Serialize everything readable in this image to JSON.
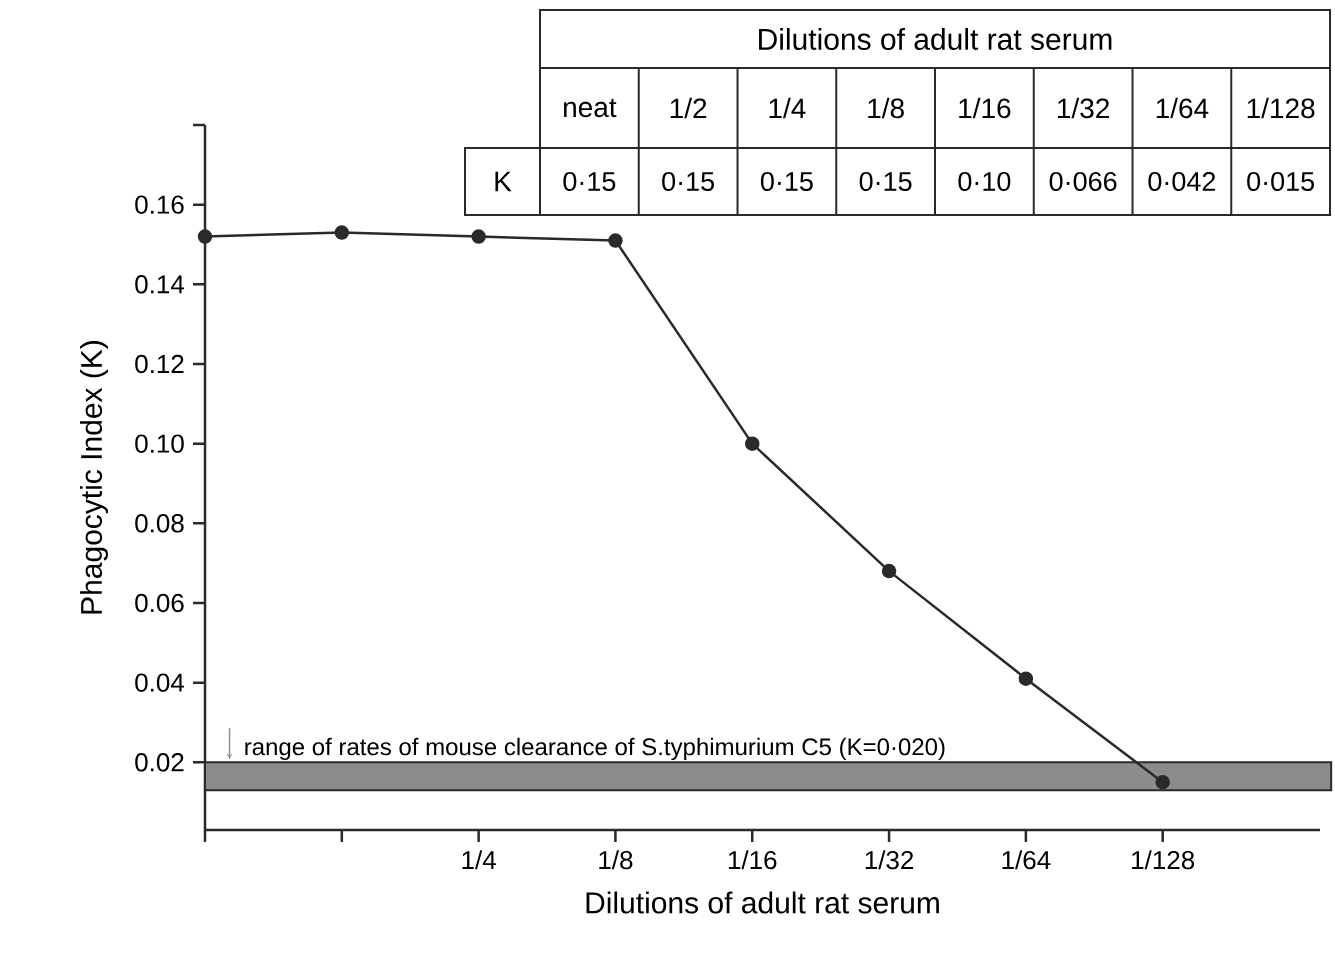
{
  "chart_data": {
    "type": "line",
    "xlabel": "Dilutions of adult rat serum",
    "ylabel": "Phagocytic Index (K)",
    "categories": [
      null,
      null,
      "1/4",
      "1/8",
      "1/16",
      "1/32",
      "1/64",
      "1/128"
    ],
    "values": [
      0.152,
      0.153,
      0.152,
      0.151,
      0.1,
      0.068,
      0.041,
      0.015
    ],
    "color": "#2a2a2a",
    "marker": "circle",
    "line_style": "solid",
    "ylim": [
      0.003,
      0.18
    ],
    "yticks": [
      {
        "value": 0.02,
        "label": "0.02"
      },
      {
        "value": 0.04,
        "label": "0.04"
      },
      {
        "value": 0.06,
        "label": "0.06"
      },
      {
        "value": 0.08,
        "label": "0.08"
      },
      {
        "value": 0.1,
        "label": "0.10"
      },
      {
        "value": 0.12,
        "label": "0.12"
      },
      {
        "value": 0.14,
        "label": "0.14"
      },
      {
        "value": 0.16,
        "label": "0.16"
      },
      {
        "value": 0.18,
        "label": null
      }
    ],
    "bands": [
      {
        "axis": "y",
        "from": 0.013,
        "to": 0.02,
        "color": "#8c8c8c",
        "label": "range of rates of mouse clearance of S.typhimurium C5 (K=0·020)"
      }
    ],
    "annotations": [
      "Dilutions of adult rat serum",
      "K",
      "neat",
      "1/2",
      "1/4",
      "1/8",
      "1/16",
      "1/32",
      "1/64",
      "1/128",
      "0·15",
      "0·15",
      "0·15",
      "0·15",
      "0·10",
      "0·066",
      "0·042",
      "0·015"
    ]
  }
}
